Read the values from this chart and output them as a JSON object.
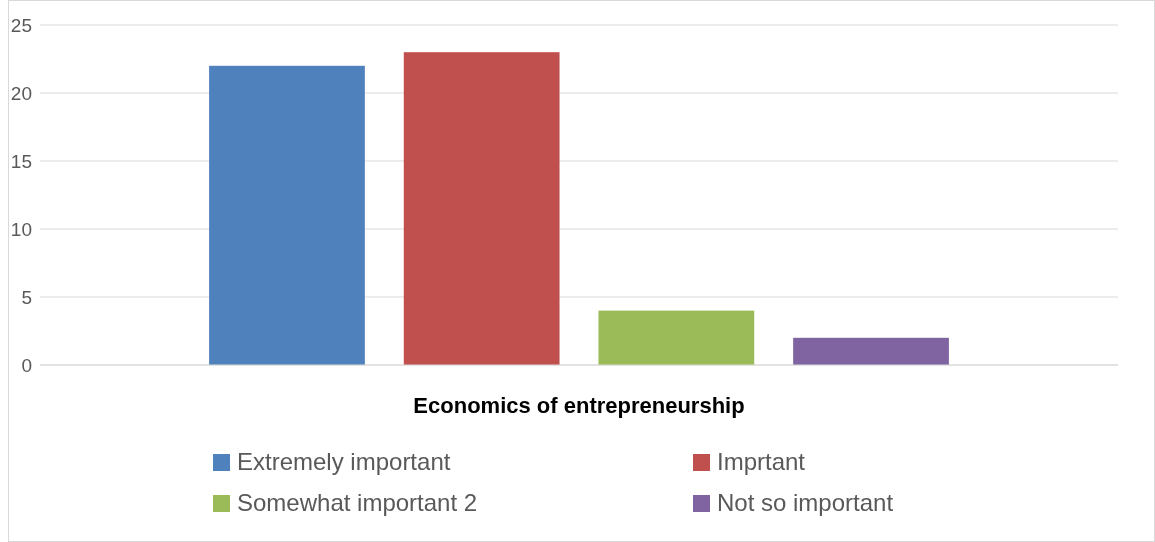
{
  "chart_data": {
    "type": "bar",
    "categories": [
      "Economics of entrepreneurship"
    ],
    "series": [
      {
        "name": "Extremely important",
        "color": "#4f81bd",
        "values": [
          22
        ]
      },
      {
        "name": "Imprtant",
        "color": "#c0504d",
        "values": [
          23
        ]
      },
      {
        "name": "Somewhat important 2",
        "color": "#9bbb59",
        "values": [
          4
        ]
      },
      {
        "name": "Not so important",
        "color": "#8064a2",
        "values": [
          2
        ]
      }
    ],
    "ylim": [
      0,
      25
    ],
    "yticks": [
      0,
      5,
      10,
      15,
      20,
      25
    ],
    "grid": "y",
    "legend": "bottom"
  }
}
